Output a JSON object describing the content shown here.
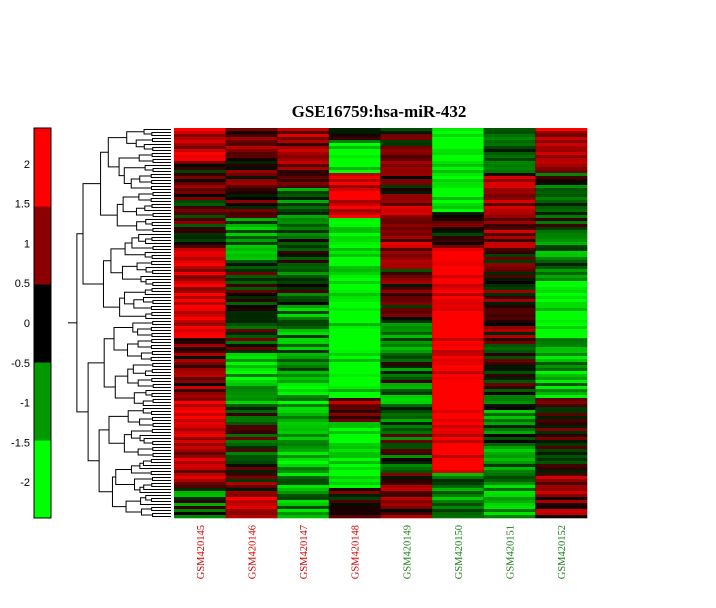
{
  "chart_data": {
    "type": "heatmap",
    "title": "GSE16759:hsa-miR-432",
    "columns": [
      {
        "label": "GSM420145",
        "color": "#d40000"
      },
      {
        "label": "GSM420146",
        "color": "#d40000"
      },
      {
        "label": "GSM420147",
        "color": "#d40000"
      },
      {
        "label": "GSM420148",
        "color": "#d40000"
      },
      {
        "label": "GSM420149",
        "color": "#1a7f1a"
      },
      {
        "label": "GSM420150",
        "color": "#1a7f1a"
      },
      {
        "label": "GSM420151",
        "color": "#1a7f1a"
      },
      {
        "label": "GSM420152",
        "color": "#1a7f1a"
      }
    ],
    "colorbar": {
      "ticks": [
        2,
        1.5,
        1,
        0.5,
        0,
        -0.5,
        -1,
        -1.5,
        -2
      ],
      "tick_labels": [
        "2",
        "1.5",
        "1",
        "0.5",
        "0",
        "-0.5",
        "-1",
        "-1.5",
        "-2"
      ],
      "range": [
        -2.45,
        2.45
      ],
      "colors": [
        "#00ff00",
        "#009a00",
        "#000000",
        "#8b0000",
        "#ff0000"
      ]
    },
    "colormap": {
      "low": "#00ff00",
      "mid": "#000000",
      "high": "#ff0000"
    },
    "row_dendrogram": true
  }
}
